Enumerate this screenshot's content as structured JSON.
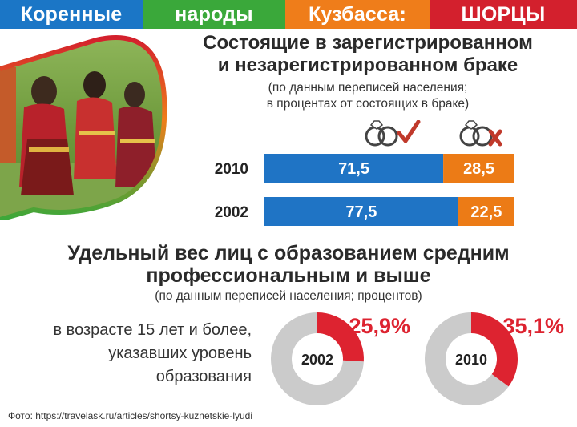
{
  "header": {
    "segments": [
      {
        "label": "Коренные",
        "color": "#1b76c6"
      },
      {
        "label": "народы",
        "color": "#3aa83a"
      },
      {
        "label": "Кузбасса:",
        "color": "#ef7d1a"
      },
      {
        "label": "ШОРЦЫ",
        "color": "#d3202d"
      }
    ]
  },
  "section1": {
    "title_line1": "Состоящие в зарегистрированном",
    "title_line2": "и незарегистрированном браке",
    "subtitle_line1": "(по данным переписей населения;",
    "subtitle_line2": "в процентах от состоящих в браке)"
  },
  "section2": {
    "title_line1": "Удельный вес лиц с образованием средним",
    "title_line2": "профессиональным и выше",
    "subtitle": "(по данным переписей населения; процентов)",
    "age_line1": "в возрасте 15 лет и более,",
    "age_line2": "указавших уровень",
    "age_line3": "образования"
  },
  "credit": "Фото: https://travelask.ru/articles/shortsy-kuznetskie-lyudi",
  "colors": {
    "blue": "#1f74c5",
    "orange": "#ec7b16",
    "red": "#dd2330",
    "grey": "#cbcbcb",
    "check": "#c0392b"
  },
  "icons": [
    "rings-check-icon",
    "rings-cross-icon"
  ],
  "chart_data": [
    {
      "type": "bar",
      "orientation": "horizontal",
      "stacked": true,
      "categories": [
        "2010",
        "2002"
      ],
      "series": [
        {
          "values": [
            71.5,
            77.5
          ],
          "labels": [
            "71,5",
            "77,5"
          ]
        },
        {
          "values": [
            28.5,
            22.5
          ],
          "labels": [
            "28,5",
            "22,5"
          ]
        }
      ],
      "xlim": [
        0,
        100
      ]
    },
    {
      "type": "pie",
      "donut": true,
      "charts": [
        {
          "year": "2002",
          "value": 25.9,
          "label": "25,9%"
        },
        {
          "year": "2010",
          "value": 35.1,
          "label": "35,1%"
        }
      ]
    }
  ]
}
